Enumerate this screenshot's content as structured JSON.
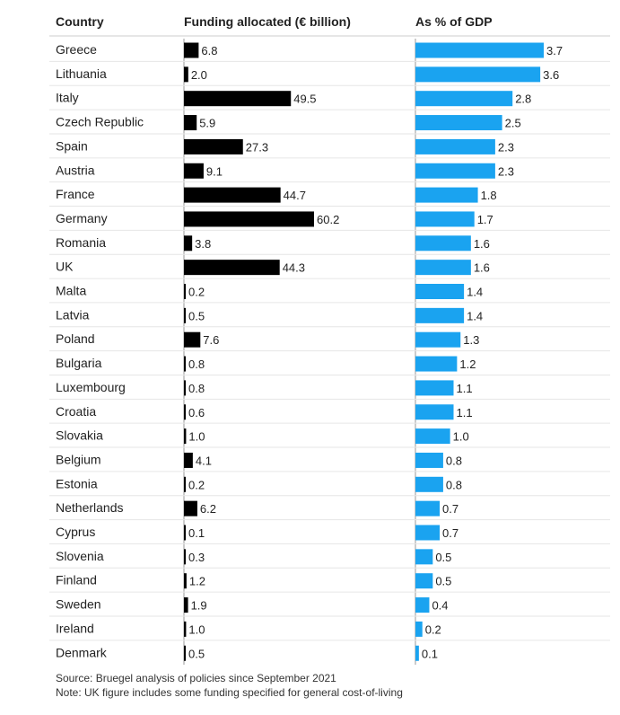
{
  "headers": {
    "country": "Country",
    "funding": "Funding allocated (€ billion)",
    "gdp": "As % of GDP"
  },
  "colors": {
    "funding_bar": "#000000",
    "gdp_bar": "#1aa3f0"
  },
  "chart_data": {
    "type": "bar",
    "orientation": "horizontal",
    "categories": [
      "Greece",
      "Lithuania",
      "Italy",
      "Czech Republic",
      "Spain",
      "Austria",
      "France",
      "Germany",
      "Romania",
      "UK",
      "Malta",
      "Latvia",
      "Poland",
      "Bulgaria",
      "Luxembourg",
      "Croatia",
      "Slovakia",
      "Belgium",
      "Estonia",
      "Netherlands",
      "Cyprus",
      "Slovenia",
      "Finland",
      "Sweden",
      "Ireland",
      "Denmark"
    ],
    "series": [
      {
        "name": "Funding allocated (€ billion)",
        "values": [
          6.8,
          2.0,
          49.5,
          5.9,
          27.3,
          9.1,
          44.7,
          60.2,
          3.8,
          44.3,
          0.2,
          0.5,
          7.6,
          0.8,
          0.8,
          0.6,
          1.0,
          4.1,
          0.2,
          6.2,
          0.1,
          0.3,
          1.2,
          1.9,
          1.0,
          0.5
        ],
        "labels": [
          "6.8",
          "2.0",
          "49.5",
          "5.9",
          "27.3",
          "9.1",
          "44.7",
          "60.2",
          "3.8",
          "44.3",
          "0.2",
          "0.5",
          "7.6",
          "0.8",
          "0.8",
          "0.6",
          "1.0",
          "4.1",
          "0.2",
          "6.2",
          "0.1",
          "0.3",
          "1.2",
          "1.9",
          "1.0",
          "0.5"
        ]
      },
      {
        "name": "As % of GDP",
        "values": [
          3.7,
          3.6,
          2.8,
          2.5,
          2.3,
          2.3,
          1.8,
          1.7,
          1.6,
          1.6,
          1.4,
          1.4,
          1.3,
          1.2,
          1.1,
          1.1,
          1.0,
          0.8,
          0.8,
          0.7,
          0.7,
          0.5,
          0.5,
          0.4,
          0.2,
          0.1
        ],
        "labels": [
          "3.7",
          "3.6",
          "2.8",
          "2.5",
          "2.3",
          "2.3",
          "1.8",
          "1.7",
          "1.6",
          "1.6",
          "1.4",
          "1.4",
          "1.3",
          "1.2",
          "1.1",
          "1.1",
          "1.0",
          "0.8",
          "0.8",
          "0.7",
          "0.7",
          "0.5",
          "0.5",
          "0.4",
          "0.2",
          "0.1"
        ]
      }
    ]
  },
  "footer": {
    "source": "Source: Bruegel analysis of policies since September 2021",
    "note": "Note: UK figure includes some funding specified for general cost-of-living"
  }
}
